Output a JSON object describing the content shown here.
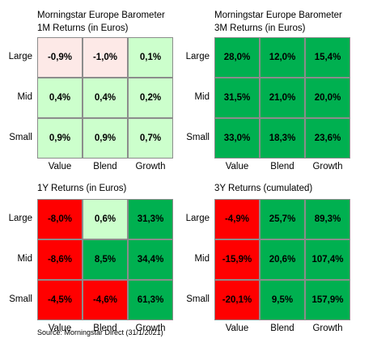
{
  "colors": {
    "light_red": "#fde9e7",
    "light_green": "#ccffcc",
    "green": "#00b050",
    "red": "#ff0000"
  },
  "chart_data": [
    {
      "type": "heatmap",
      "title": "Morningstar Europe Barometer",
      "subtitle": "1M Returns (in Euros)",
      "rows": [
        "Large",
        "Mid",
        "Small"
      ],
      "columns": [
        "Value",
        "Blend",
        "Growth"
      ],
      "values": [
        [
          -0.9,
          -1.0,
          0.1
        ],
        [
          0.4,
          0.4,
          0.2
        ],
        [
          0.9,
          0.9,
          0.7
        ]
      ],
      "labels": [
        [
          "-0,9%",
          "-1,0%",
          "0,1%"
        ],
        [
          "0,4%",
          "0,4%",
          "0,2%"
        ],
        [
          "0,9%",
          "0,9%",
          "0,7%"
        ]
      ],
      "cell_colors": [
        [
          "light_red",
          "light_red",
          "light_green"
        ],
        [
          "light_green",
          "light_green",
          "light_green"
        ],
        [
          "light_green",
          "light_green",
          "light_green"
        ]
      ]
    },
    {
      "type": "heatmap",
      "title": "Morningstar Europe Barometer",
      "subtitle": "3M Returns (in Euros)",
      "rows": [
        "Large",
        "Mid",
        "Small"
      ],
      "columns": [
        "Value",
        "Blend",
        "Growth"
      ],
      "values": [
        [
          28.0,
          12.0,
          15.4
        ],
        [
          31.5,
          21.0,
          20.0
        ],
        [
          33.0,
          18.3,
          23.6
        ]
      ],
      "labels": [
        [
          "28,0%",
          "12,0%",
          "15,4%"
        ],
        [
          "31,5%",
          "21,0%",
          "20,0%"
        ],
        [
          "33,0%",
          "18,3%",
          "23,6%"
        ]
      ],
      "cell_colors": [
        [
          "green",
          "green",
          "green"
        ],
        [
          "green",
          "green",
          "green"
        ],
        [
          "green",
          "green",
          "green"
        ]
      ]
    },
    {
      "type": "heatmap",
      "title": "",
      "subtitle": "1Y Returns (in Euros)",
      "rows": [
        "Large",
        "Mid",
        "Small"
      ],
      "columns": [
        "Value",
        "Blend",
        "Growth"
      ],
      "values": [
        [
          -8.0,
          0.6,
          31.3
        ],
        [
          -8.6,
          8.5,
          34.4
        ],
        [
          -4.5,
          -4.6,
          61.3
        ]
      ],
      "labels": [
        [
          "-8,0%",
          "0,6%",
          "31,3%"
        ],
        [
          "-8,6%",
          "8,5%",
          "34,4%"
        ],
        [
          "-4,5%",
          "-4,6%",
          "61,3%"
        ]
      ],
      "cell_colors": [
        [
          "red",
          "light_green",
          "green"
        ],
        [
          "red",
          "green",
          "green"
        ],
        [
          "red",
          "red",
          "green"
        ]
      ]
    },
    {
      "type": "heatmap",
      "title": "",
      "subtitle": "3Y Returns (cumulated)",
      "rows": [
        "Large",
        "Mid",
        "Small"
      ],
      "columns": [
        "Value",
        "Blend",
        "Growth"
      ],
      "values": [
        [
          -4.9,
          25.7,
          89.3
        ],
        [
          -15.9,
          20.6,
          107.4
        ],
        [
          -20.1,
          9.5,
          157.9
        ]
      ],
      "labels": [
        [
          "-4,9%",
          "25,7%",
          "89,3%"
        ],
        [
          "-15,9%",
          "20,6%",
          "107,4%"
        ],
        [
          "-20,1%",
          "9,5%",
          "157,9%"
        ]
      ],
      "cell_colors": [
        [
          "red",
          "green",
          "green"
        ],
        [
          "red",
          "green",
          "green"
        ],
        [
          "red",
          "green",
          "green"
        ]
      ]
    }
  ],
  "source": "Source: Morningstar Direct (31/1/2021)"
}
